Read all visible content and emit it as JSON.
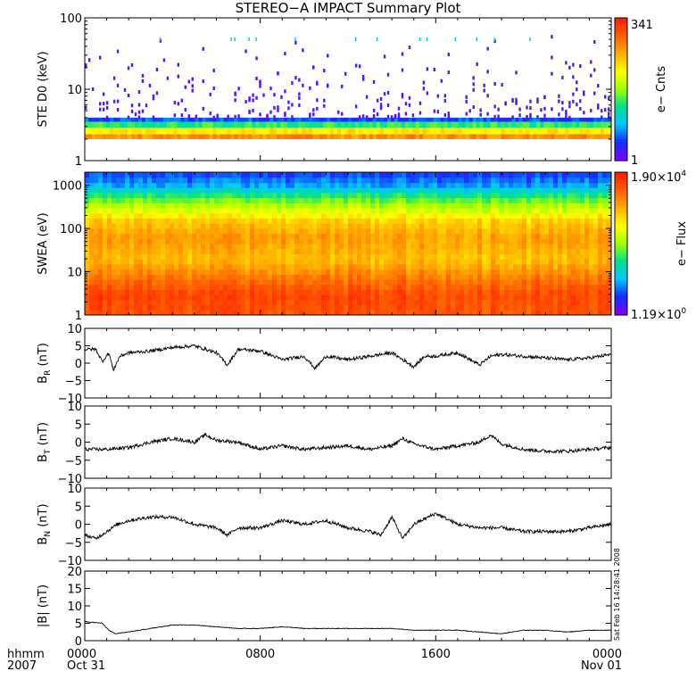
{
  "title": "STEREO−A IMPACT Summary Plot",
  "stamp": "Sat Feb 16 14:28:41 2008",
  "time_axis": {
    "row_label_1": "hhmm",
    "row_label_2": "2007",
    "ticks": [
      {
        "t": 0,
        "hhmm": "0000",
        "date": "Oct 31"
      },
      {
        "t": 8,
        "hhmm": "0800",
        "date": ""
      },
      {
        "t": 16,
        "hhmm": "1600",
        "date": ""
      },
      {
        "t": 24,
        "hhmm": "0000",
        "date": "Nov 01"
      }
    ],
    "range_hours": [
      0,
      24
    ]
  },
  "colors": {
    "colormap": [
      "#8000ff",
      "#1030ff",
      "#00c8ff",
      "#00e090",
      "#a0ff00",
      "#ffff00",
      "#ffb000",
      "#ff6000",
      "#ff2000"
    ],
    "line": "#000000",
    "axis": "#000000"
  },
  "chart_data": [
    {
      "type": "heatmap",
      "id": "ste",
      "ylabel": "STE D0 (keV)",
      "yscale": "log",
      "ylim": [
        1,
        100
      ],
      "yticks": [
        "1",
        "10",
        "100"
      ],
      "colorbar": {
        "label": "e− Cnts",
        "min": "1",
        "max": "341",
        "scale": "log"
      },
      "description_data": {
        "dense_band_keV": [
          2.0,
          4.0
        ],
        "band_levels": [
          {
            "e": 2.1,
            "level": 0.8
          },
          {
            "e": 2.6,
            "level": 0.65
          },
          {
            "e": 3.2,
            "level": 0.4
          },
          {
            "e": 3.8,
            "level": 0.15
          }
        ],
        "sparse_counts_level": 0.05,
        "sparse_upper_keV": 60
      }
    },
    {
      "type": "heatmap",
      "id": "swea",
      "ylabel": "SWEA (eV)",
      "yscale": "log",
      "ylim": [
        1,
        2000
      ],
      "yticks": [
        "1",
        "10",
        "100",
        "1000"
      ],
      "colorbar": {
        "label": "e− Flux",
        "min_mant": "1.19",
        "min_exp": "0",
        "max_mant": "1.90",
        "max_exp": "4",
        "scale": "log"
      },
      "energy_profile": [
        {
          "e": 1,
          "level": 0.9
        },
        {
          "e": 3,
          "level": 0.92
        },
        {
          "e": 8,
          "level": 0.82
        },
        {
          "e": 20,
          "level": 0.72
        },
        {
          "e": 60,
          "level": 0.78
        },
        {
          "e": 150,
          "level": 0.7
        },
        {
          "e": 300,
          "level": 0.55
        },
        {
          "e": 600,
          "level": 0.38
        },
        {
          "e": 1000,
          "level": 0.22
        },
        {
          "e": 2000,
          "level": 0.12
        }
      ]
    },
    {
      "type": "line",
      "id": "br",
      "ylabel_main": "B",
      "ylabel_sub": "R",
      "ylabel_unit": " (nT)",
      "ylim": [
        -10,
        10
      ],
      "yticks": [
        "−10",
        "−5",
        "0",
        "5",
        "10"
      ],
      "x": [
        0,
        0.5,
        0.8,
        1.1,
        1.3,
        1.6,
        2,
        3,
        4,
        5,
        6,
        6.5,
        7,
        8,
        9,
        10,
        10.5,
        11,
        12,
        13,
        14,
        15,
        15.5,
        16,
        17,
        18,
        18.5,
        19,
        20,
        21,
        22,
        23,
        23.5,
        24
      ],
      "y": [
        4,
        4,
        0.5,
        3,
        -2,
        2,
        3,
        3.5,
        4.5,
        5,
        3,
        -0.5,
        4,
        3.5,
        1,
        2,
        -1.5,
        2,
        1,
        2,
        3,
        -1,
        2,
        2,
        3,
        -0.5,
        2,
        2.5,
        2,
        1.5,
        1,
        1.5,
        2,
        2.5
      ]
    },
    {
      "type": "line",
      "id": "bt",
      "ylabel_main": "B",
      "ylabel_sub": "T",
      "ylabel_unit": " (nT)",
      "ylim": [
        -10,
        10
      ],
      "yticks": [
        "−10",
        "−5",
        "0",
        "5",
        "10"
      ],
      "x": [
        0,
        1,
        2,
        3,
        4,
        5,
        5.5,
        6,
        7,
        8,
        9,
        10,
        11,
        12,
        13,
        14,
        14.5,
        15,
        16,
        17,
        18,
        18.5,
        19,
        20,
        21,
        22,
        23,
        24
      ],
      "y": [
        -2,
        -2,
        -1.5,
        0,
        1,
        0,
        2,
        0.5,
        0,
        -2,
        -1,
        -2,
        -1.5,
        -1,
        -2,
        -1,
        1,
        -0.5,
        -2,
        -1,
        0,
        2,
        -0.5,
        -2,
        -2.5,
        -2.5,
        -2,
        -1.5
      ]
    },
    {
      "type": "line",
      "id": "bn",
      "ylabel_main": "B",
      "ylabel_sub": "N",
      "ylabel_unit": " (nT)",
      "ylim": [
        -10,
        10
      ],
      "yticks": [
        "−10",
        "−5",
        "0",
        "5",
        "10"
      ],
      "x": [
        0,
        0.5,
        1,
        1.5,
        2,
        3,
        4,
        5,
        6,
        6.5,
        7,
        8,
        9,
        10,
        11,
        12,
        13,
        13.5,
        14,
        14.5,
        15,
        16,
        17,
        18,
        19,
        20,
        21,
        22,
        23,
        24
      ],
      "y": [
        -3,
        -4,
        -2,
        0,
        1,
        2,
        2,
        0,
        -1,
        -3,
        -1,
        -1,
        1,
        0,
        1,
        -1,
        -2,
        -3,
        2,
        -4,
        0,
        3,
        0,
        -1,
        -1,
        -2,
        -2,
        -2,
        -1,
        0
      ]
    },
    {
      "type": "line",
      "id": "bmag",
      "ylabel_main": "|B| (nT)",
      "ylim": [
        0,
        20
      ],
      "yticks": [
        "0",
        "5",
        "10",
        "15",
        "20"
      ],
      "x": [
        0,
        0.8,
        1.1,
        1.4,
        2,
        3,
        4,
        5,
        6,
        7,
        8,
        9,
        10,
        11,
        12,
        13,
        14,
        15,
        16,
        17,
        18,
        19,
        20,
        21,
        22,
        23,
        24
      ],
      "y": [
        5.5,
        5,
        3,
        2,
        2.5,
        3.5,
        4.5,
        4.5,
        4,
        3.5,
        3.5,
        4,
        3.5,
        3.5,
        3.5,
        3.5,
        3.5,
        3,
        3,
        3,
        2.5,
        2,
        3,
        3,
        2.5,
        3,
        3
      ]
    }
  ]
}
